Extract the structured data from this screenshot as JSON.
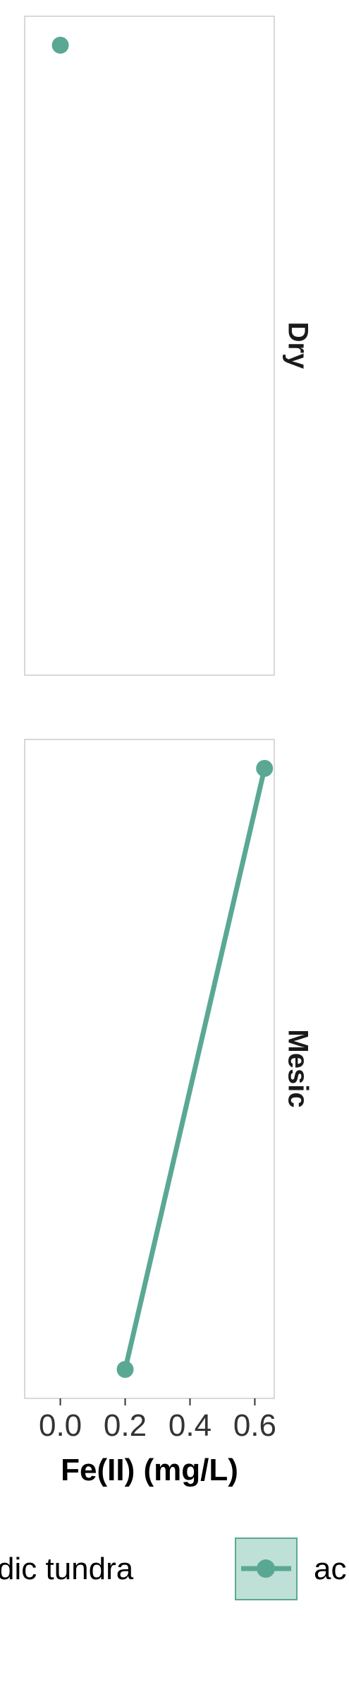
{
  "chart_data": {
    "type": "line",
    "xlabel": "Fe(II) (mg/L)",
    "ylabel": "",
    "xlim": [
      -0.11,
      0.66
    ],
    "x_ticks": [
      "0.0",
      "0.2",
      "0.4",
      "0.6"
    ],
    "grid": false,
    "legend_placement": "bottom",
    "colors": {
      "series": "#5aa893",
      "legend_fill": "#bfe0d6",
      "panel_border": "#cccccc"
    },
    "panels": [
      {
        "label": "Dry",
        "points": [
          {
            "x": 0.0,
            "y": 1.0
          }
        ]
      },
      {
        "label": "Mesic",
        "points": [
          {
            "x": 0.2,
            "y": 0.0
          },
          {
            "x": 0.63,
            "y": 1.0
          }
        ]
      }
    ],
    "legend": [
      {
        "name": "dic tundra"
      },
      {
        "name": "ac"
      }
    ]
  }
}
